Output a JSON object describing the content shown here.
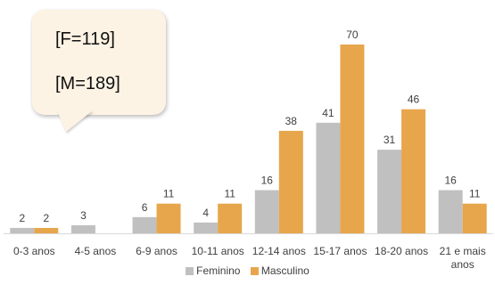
{
  "chart_data": {
    "type": "bar",
    "categories": [
      "0-3 anos",
      "4-5 anos",
      "6-9 anos",
      "10-11 anos",
      "12-14 anos",
      "15-17 anos",
      "18-20 anos",
      "21 e mais anos"
    ],
    "series": [
      {
        "name": "Feminino",
        "color": "#c0c0c0",
        "values": [
          2,
          3,
          6,
          4,
          16,
          41,
          31,
          16
        ]
      },
      {
        "name": "Masculino",
        "color": "#e7a64c",
        "values": [
          2,
          null,
          11,
          11,
          38,
          70,
          46,
          11
        ]
      }
    ],
    "ylim": [
      0,
      70
    ],
    "grid": false,
    "legend_position": "bottom",
    "annotation": {
      "lines": [
        "[F=119]",
        "[M=189]"
      ]
    }
  }
}
